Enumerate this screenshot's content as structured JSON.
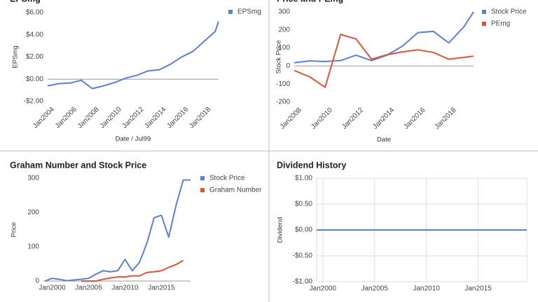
{
  "chart_data": [
    {
      "type": "line",
      "title": "EPSmg",
      "xlabel": "Date / Jul99",
      "ylabel": "EPSmg",
      "xlim": [
        2003.5,
        2018.8
      ],
      "xticks": [
        {
          "value": 2004,
          "label": "Jan2004"
        },
        {
          "value": 2006,
          "label": "Jan2006"
        },
        {
          "value": 2008,
          "label": "Jan2008"
        },
        {
          "value": 2010,
          "label": "Jan2010"
        },
        {
          "value": 2012,
          "label": "Jan2012"
        },
        {
          "value": 2014,
          "label": "Jan2014"
        },
        {
          "value": 2016,
          "label": "Jan2016"
        },
        {
          "value": 2018,
          "label": "Jan2018"
        }
      ],
      "ylim": [
        -2,
        6
      ],
      "yticks": [
        {
          "value": -2,
          "label": "-$2.00"
        },
        {
          "value": 0,
          "label": "$0.00"
        },
        {
          "value": 2,
          "label": "$2.00"
        },
        {
          "value": 4,
          "label": "$4.00"
        },
        {
          "value": 6,
          "label": "$6.00"
        }
      ],
      "zero_line": true,
      "grid": false,
      "legend": "right",
      "series": [
        {
          "name": "EPSmg",
          "color": "#5b7fd6",
          "x": [
            2003.5,
            2004.5,
            2005.5,
            2006.5,
            2007.5,
            2008.5,
            2009.5,
            2010.5,
            2011.5,
            2012.5,
            2013.5,
            2014.5,
            2015.5,
            2016.5,
            2017.5,
            2018.5,
            2018.8
          ],
          "values": [
            -0.6,
            -0.4,
            -0.35,
            -0.1,
            -0.85,
            -0.6,
            -0.3,
            0.1,
            0.35,
            0.75,
            0.85,
            1.35,
            2.0,
            2.5,
            3.4,
            4.3,
            5.2
          ]
        }
      ]
    },
    {
      "type": "line",
      "title": "Price and PEmg",
      "xlabel": "Date",
      "ylabel": "Stock Price",
      "xlim": [
        2007.6,
        2019.2
      ],
      "xticks": [
        {
          "value": 2008,
          "label": "Jan2008"
        },
        {
          "value": 2010,
          "label": "Jan2010"
        },
        {
          "value": 2012,
          "label": "Jan2012"
        },
        {
          "value": 2014,
          "label": "Jan2014"
        },
        {
          "value": 2016,
          "label": "Jan2016"
        },
        {
          "value": 2018,
          "label": "Jan2018"
        }
      ],
      "ylim": [
        -200,
        300
      ],
      "yticks": [
        -200,
        -100,
        0,
        100,
        200,
        300
      ],
      "zero_line": true,
      "grid": false,
      "legend": "right",
      "series": [
        {
          "name": "Stock Price",
          "color": "#5b7fd6",
          "x": [
            2007.6,
            2008.6,
            2009.6,
            2010.6,
            2011.6,
            2012.6,
            2013.6,
            2014.6,
            2015.6,
            2016.6,
            2017.6,
            2018.6,
            2019.2
          ],
          "values": [
            18,
            28,
            25,
            30,
            60,
            30,
            60,
            110,
            185,
            192,
            128,
            220,
            300
          ]
        },
        {
          "name": "PEmg",
          "color": "#e0533b",
          "x": [
            2007.6,
            2008.6,
            2009.6,
            2010.6,
            2011.6,
            2012.6,
            2013.6,
            2014.6,
            2015.6,
            2016.6,
            2017.6,
            2018.6,
            2019.2
          ],
          "values": [
            -25,
            -60,
            -118,
            175,
            150,
            38,
            62,
            78,
            90,
            75,
            38,
            48,
            55
          ]
        }
      ]
    },
    {
      "type": "line",
      "title": "Graham Number and Stock Price",
      "ylabel": "Price",
      "xlim": [
        1998.8,
        2019
      ],
      "xticks": [
        {
          "value": 2000,
          "label": "Jan2000"
        },
        {
          "value": 2005,
          "label": "Jan2005"
        },
        {
          "value": 2010,
          "label": "Jan2010"
        },
        {
          "value": 2015,
          "label": "Jan2015"
        }
      ],
      "ylim": [
        0,
        300
      ],
      "yticks": [
        0,
        100,
        200,
        300
      ],
      "zero_line": true,
      "grid": false,
      "legend": "right",
      "series": [
        {
          "name": "Stock Price",
          "color": "#5b7fd6",
          "x": [
            1999,
            2000,
            2001,
            2002,
            2003,
            2004,
            2005,
            2006,
            2007,
            2008,
            2009,
            2010,
            2011,
            2012,
            2013,
            2014,
            2015,
            2016,
            2017,
            2018,
            2019
          ],
          "values": [
            0,
            8,
            5,
            1,
            3,
            5,
            8,
            20,
            30,
            27,
            30,
            63,
            30,
            55,
            110,
            185,
            192,
            128,
            220,
            295,
            295
          ]
        },
        {
          "name": "Graham Number",
          "color": "#e0533b",
          "x": [
            1999,
            2000,
            2001,
            2002,
            2003,
            2004,
            2005,
            2006,
            2007,
            2008,
            2009,
            2010,
            2011,
            2012,
            2013,
            2014,
            2015,
            2016,
            2017,
            2018,
            2019
          ],
          "values": [
            null,
            null,
            null,
            null,
            null,
            0,
            0,
            0,
            5,
            9,
            12,
            12,
            15,
            15,
            25,
            27,
            30,
            40,
            48,
            60,
            null
          ]
        }
      ]
    },
    {
      "type": "line",
      "title": "Dividend History",
      "ylabel": "Dividend",
      "xlim": [
        1999.4,
        2019.7
      ],
      "xticks": [
        {
          "value": 2000,
          "label": "Jan2000"
        },
        {
          "value": 2005,
          "label": "Jan2005"
        },
        {
          "value": 2010,
          "label": "Jan2010"
        },
        {
          "value": 2015,
          "label": "Jan2015"
        }
      ],
      "ylim": [
        -1,
        1
      ],
      "yticks": [
        {
          "value": -1,
          "label": "-$1.00"
        },
        {
          "value": -0.5,
          "label": "-$0.50"
        },
        {
          "value": 0,
          "label": "$0.00"
        },
        {
          "value": 0.5,
          "label": "$0.50"
        },
        {
          "value": 1,
          "label": "$1.00"
        }
      ],
      "zero_line": false,
      "grid": true,
      "series": [
        {
          "color": "#5b7fd6",
          "x": [
            1999.4,
            2019.7
          ],
          "values": [
            0,
            0
          ]
        }
      ]
    }
  ]
}
